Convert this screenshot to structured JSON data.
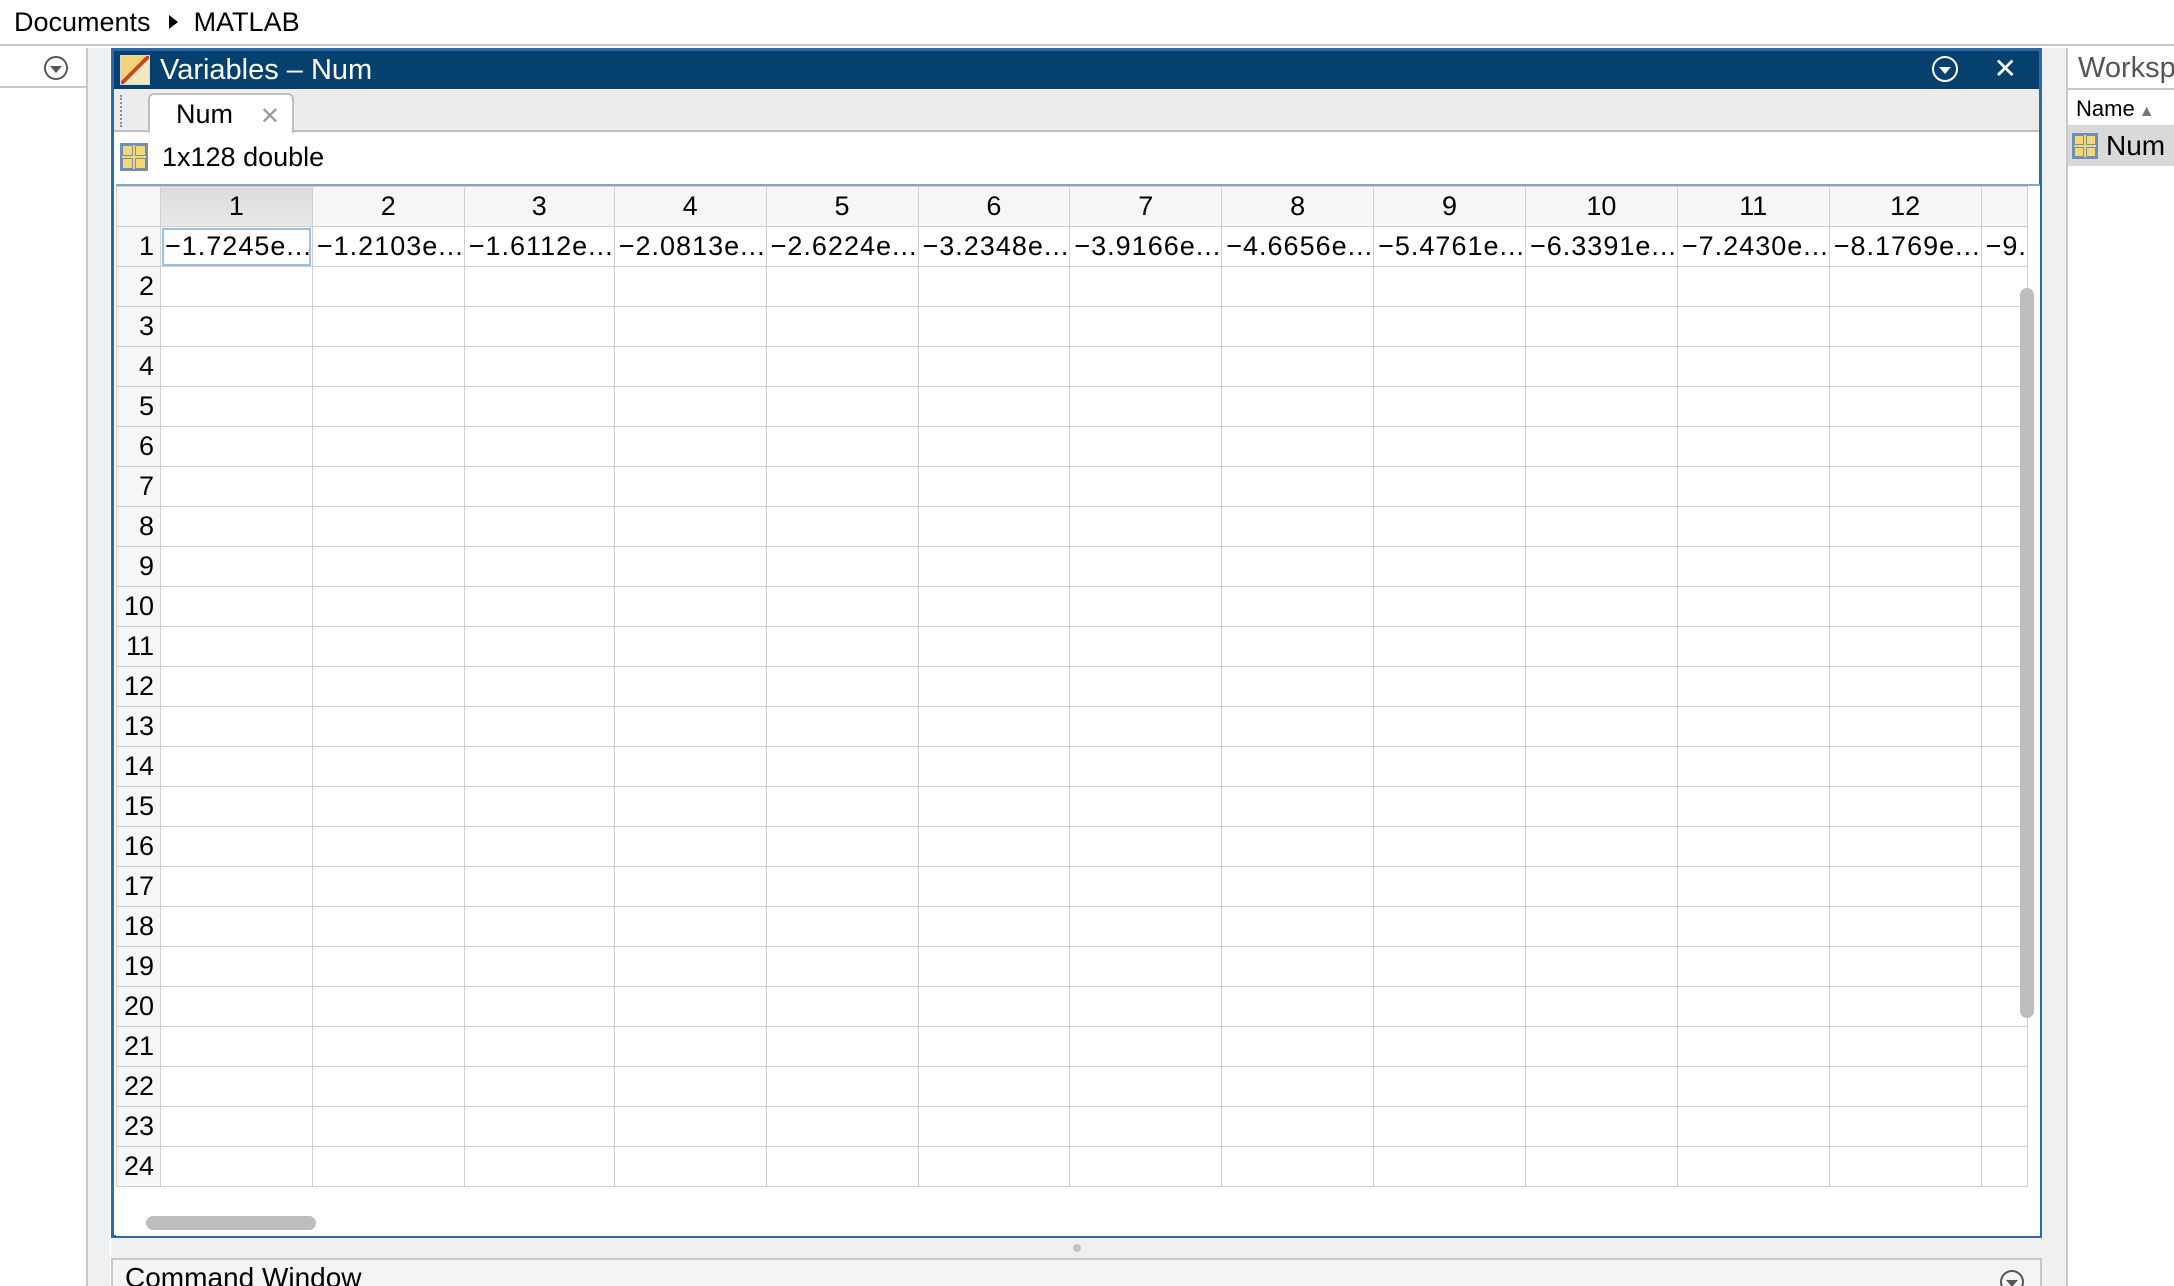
{
  "breadcrumb": [
    "Documents",
    "MATLAB"
  ],
  "variables_window": {
    "title": "Variables – Num",
    "tab_label": "Num",
    "info": "1x128 double",
    "column_headers": [
      "1",
      "2",
      "3",
      "4",
      "5",
      "6",
      "7",
      "8",
      "9",
      "10",
      "11",
      "12"
    ],
    "row_headers": [
      "1",
      "2",
      "3",
      "4",
      "5",
      "6",
      "7",
      "8",
      "9",
      "10",
      "11",
      "12",
      "13",
      "14",
      "15",
      "16",
      "17",
      "18",
      "19",
      "20",
      "21",
      "22",
      "23",
      "24"
    ],
    "row1_values": [
      "−1.7245e...",
      "−1.2103e...",
      "−1.6112e...",
      "−2.0813e...",
      "−2.6224e...",
      "−3.2348e...",
      "−3.9166e...",
      "−4.6656e...",
      "−5.4761e...",
      "−6.3391e...",
      "−7.2430e...",
      "−8.1769e..."
    ],
    "row1_partial": "−9.",
    "selected_column": "1"
  },
  "command_window": {
    "title": "Command Window"
  },
  "workspace": {
    "title": "Workspace",
    "name_header": "Name",
    "items": [
      "Num"
    ]
  }
}
